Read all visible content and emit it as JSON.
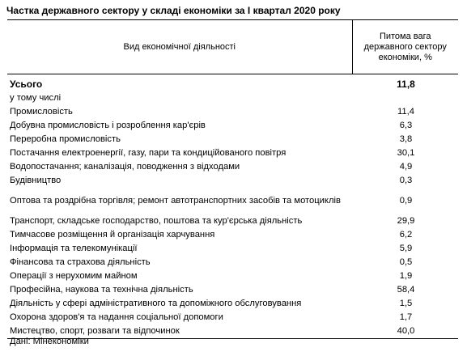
{
  "title": "Частка державного сектору у складі економіки за  І квартал 2020 року",
  "header": {
    "col1": "Вид економічної діяльності",
    "col2_line1": "Питома вага",
    "col2_line2": "державного сектору",
    "col2_line3": "економіки, %"
  },
  "rows": [
    {
      "label": "Усього",
      "value": "11,8"
    },
    {
      "label": "у тому числі",
      "value": ""
    },
    {
      "label": "Промисловість",
      "value": "11,4"
    },
    {
      "label": "Добувна промисловість  і розроблення кар'єрів",
      "value": "6,3"
    },
    {
      "label": "Переробна промисловість",
      "value": "3,8"
    },
    {
      "label": "Постачання електроенергії, газу, пари та кондиційованого повітря",
      "value": "30,1"
    },
    {
      "label": "Водопостачання; каналізація, поводження з відходами",
      "value": "4,9"
    },
    {
      "label": "Будівництво",
      "value": "0,3"
    },
    {
      "label": "Оптова та роздрібна торгівля; ремонт автотранспортних засобів та мотоциклів",
      "value": "0,9"
    },
    {
      "label": "Транспорт, складське господарство, поштова та кур'єрська діяльність",
      "value": "29,9"
    },
    {
      "label": "Тимчасове розміщення й організація харчування",
      "value": "6,2"
    },
    {
      "label": "Інформація та телекомунікації",
      "value": "5,9"
    },
    {
      "label": "Фінансова та страхова діяльність",
      "value": "0,5"
    },
    {
      "label": "Операції з нерухомим майном",
      "value": "1,9"
    },
    {
      "label": "Професійна, наукова та технічна діяльність",
      "value": "58,4"
    },
    {
      "label": "Діяльність у сфері адміністративного та допоміжного обслуговування",
      "value": "1,5"
    },
    {
      "label": "Охорона здоров'я та надання соціальної допомоги",
      "value": "1,7"
    },
    {
      "label": "Мистецтво, спорт, розваги та відпочинок",
      "value": "40,0"
    }
  ],
  "source": "Дані: Мінекономіки"
}
